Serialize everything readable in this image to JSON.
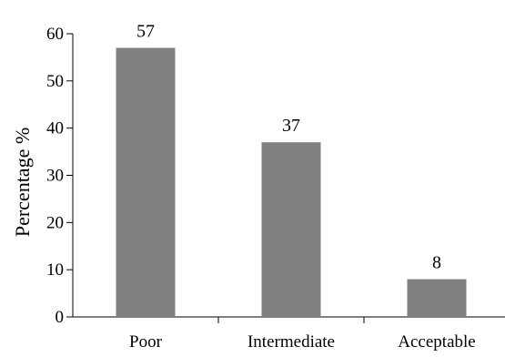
{
  "chart_data": {
    "type": "bar",
    "categories": [
      "Poor",
      "Intermediate",
      "Acceptable"
    ],
    "values": [
      57,
      37,
      8
    ],
    "data_labels": [
      "57",
      "37",
      "8"
    ],
    "title": "",
    "xlabel": "",
    "ylabel": "Percentage %",
    "ylim": [
      0,
      60
    ],
    "yticks": [
      0,
      10,
      20,
      30,
      40,
      50,
      60
    ],
    "ytick_labels": [
      "0",
      "10",
      "20",
      "30",
      "40",
      "50",
      "60"
    ],
    "grid": false,
    "legend": "none",
    "bar_color": "#808080"
  }
}
